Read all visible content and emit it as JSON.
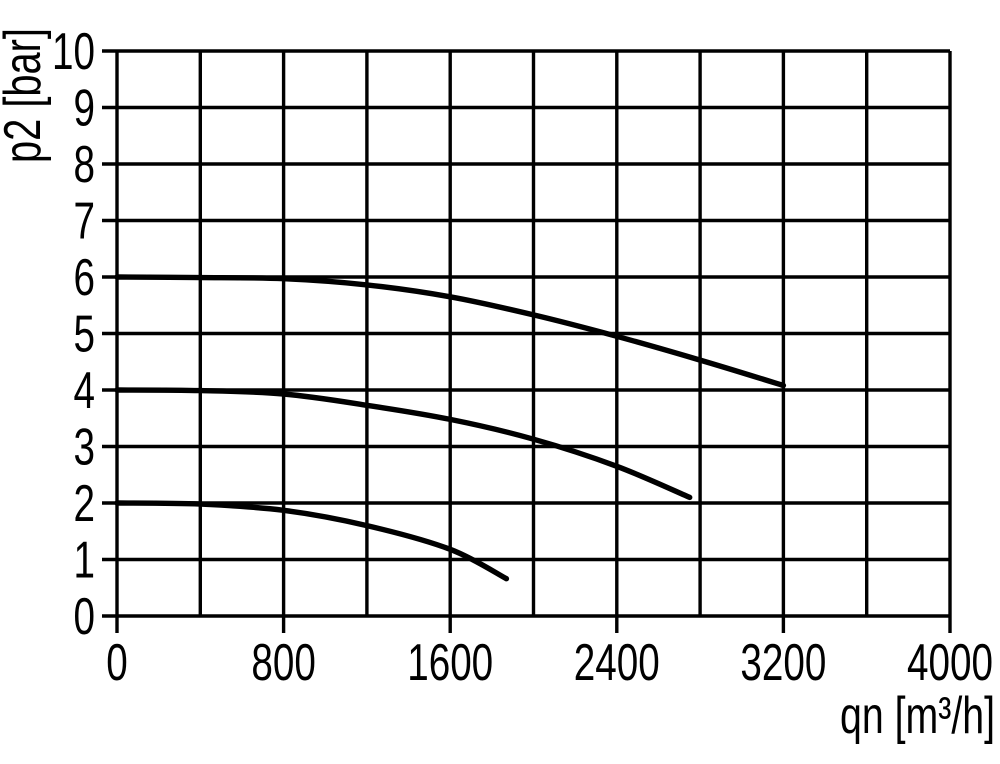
{
  "chart_data": {
    "type": "line",
    "title": "",
    "xlabel": "qn [m³/h]",
    "ylabel": "p2 [bar]",
    "xlim": [
      0,
      4000
    ],
    "ylim": [
      0,
      10
    ],
    "x_tick_values": [
      0,
      800,
      1600,
      2400,
      3200,
      4000
    ],
    "x_tick_labels": [
      "0",
      "800",
      "1600",
      "2400",
      "3200",
      "4000"
    ],
    "x_grid_interval": 400,
    "y_tick_values": [
      0,
      1,
      2,
      3,
      4,
      5,
      6,
      7,
      8,
      9,
      10
    ],
    "y_tick_labels": [
      "0",
      "1",
      "2",
      "3",
      "4",
      "5",
      "6",
      "7",
      "8",
      "9",
      "10"
    ],
    "grid": "on",
    "legend": "none",
    "colors": {
      "curve": "#000000",
      "grid": "#000000",
      "background": "#ffffff"
    },
    "series": [
      {
        "name": "curve starting at 6 bar",
        "points": [
          [
            0,
            6.0
          ],
          [
            400,
            5.99
          ],
          [
            800,
            5.97
          ],
          [
            1200,
            5.86
          ],
          [
            1600,
            5.65
          ],
          [
            2000,
            5.33
          ],
          [
            2400,
            4.95
          ],
          [
            2800,
            4.53
          ],
          [
            3200,
            4.08
          ]
        ]
      },
      {
        "name": "curve starting at 4 bar",
        "points": [
          [
            0,
            4.0
          ],
          [
            400,
            3.99
          ],
          [
            800,
            3.93
          ],
          [
            1200,
            3.73
          ],
          [
            1600,
            3.48
          ],
          [
            2000,
            3.13
          ],
          [
            2400,
            2.65
          ],
          [
            2750,
            2.1
          ]
        ]
      },
      {
        "name": "curve starting at 2 bar",
        "points": [
          [
            0,
            2.0
          ],
          [
            400,
            1.98
          ],
          [
            800,
            1.87
          ],
          [
            1200,
            1.6
          ],
          [
            1600,
            1.18
          ],
          [
            1870,
            0.66
          ]
        ]
      }
    ]
  }
}
